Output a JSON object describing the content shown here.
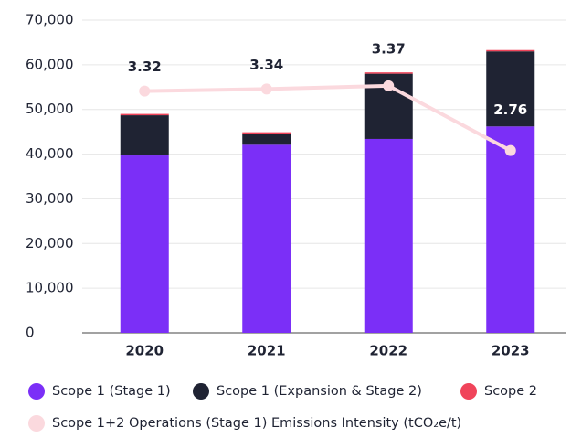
{
  "chart_data": {
    "type": "bar",
    "categories": [
      "2020",
      "2021",
      "2022",
      "2023"
    ],
    "stacked": true,
    "series": [
      {
        "name": "Scope 1 (Stage 1)",
        "color": "#7b2ff7",
        "values": [
          39700,
          42100,
          43400,
          46200
        ]
      },
      {
        "name": "Scope 1 (Expansion & Stage 2)",
        "color": "#1f2333",
        "values": [
          9000,
          2500,
          14600,
          16800
        ]
      },
      {
        "name": "Scope 2",
        "color": "#f0445a",
        "values": [
          300,
          300,
          300,
          300
        ]
      },
      {
        "name": "Scope 1+2 Operations (Stage 1) Emissions Intensity (tCO₂e/t)",
        "color": "#fbd9de",
        "type": "line",
        "axis": "y2",
        "values": [
          3.32,
          3.34,
          3.37,
          2.76
        ]
      }
    ],
    "ylim": [
      0,
      70000
    ],
    "yticks": [
      {
        "value": 0,
        "label": "0"
      },
      {
        "value": 10000,
        "label": "10,000"
      },
      {
        "value": 20000,
        "label": "20,000"
      },
      {
        "value": 30000,
        "label": "30,000"
      },
      {
        "value": 40000,
        "label": "40,000"
      },
      {
        "value": 50000,
        "label": "50,000"
      },
      {
        "value": 60000,
        "label": "60,000"
      },
      {
        "value": 70000,
        "label": "70,000"
      }
    ],
    "y2lim": [
      1.04,
      3.99
    ],
    "grid": true,
    "legend": "bottom"
  }
}
